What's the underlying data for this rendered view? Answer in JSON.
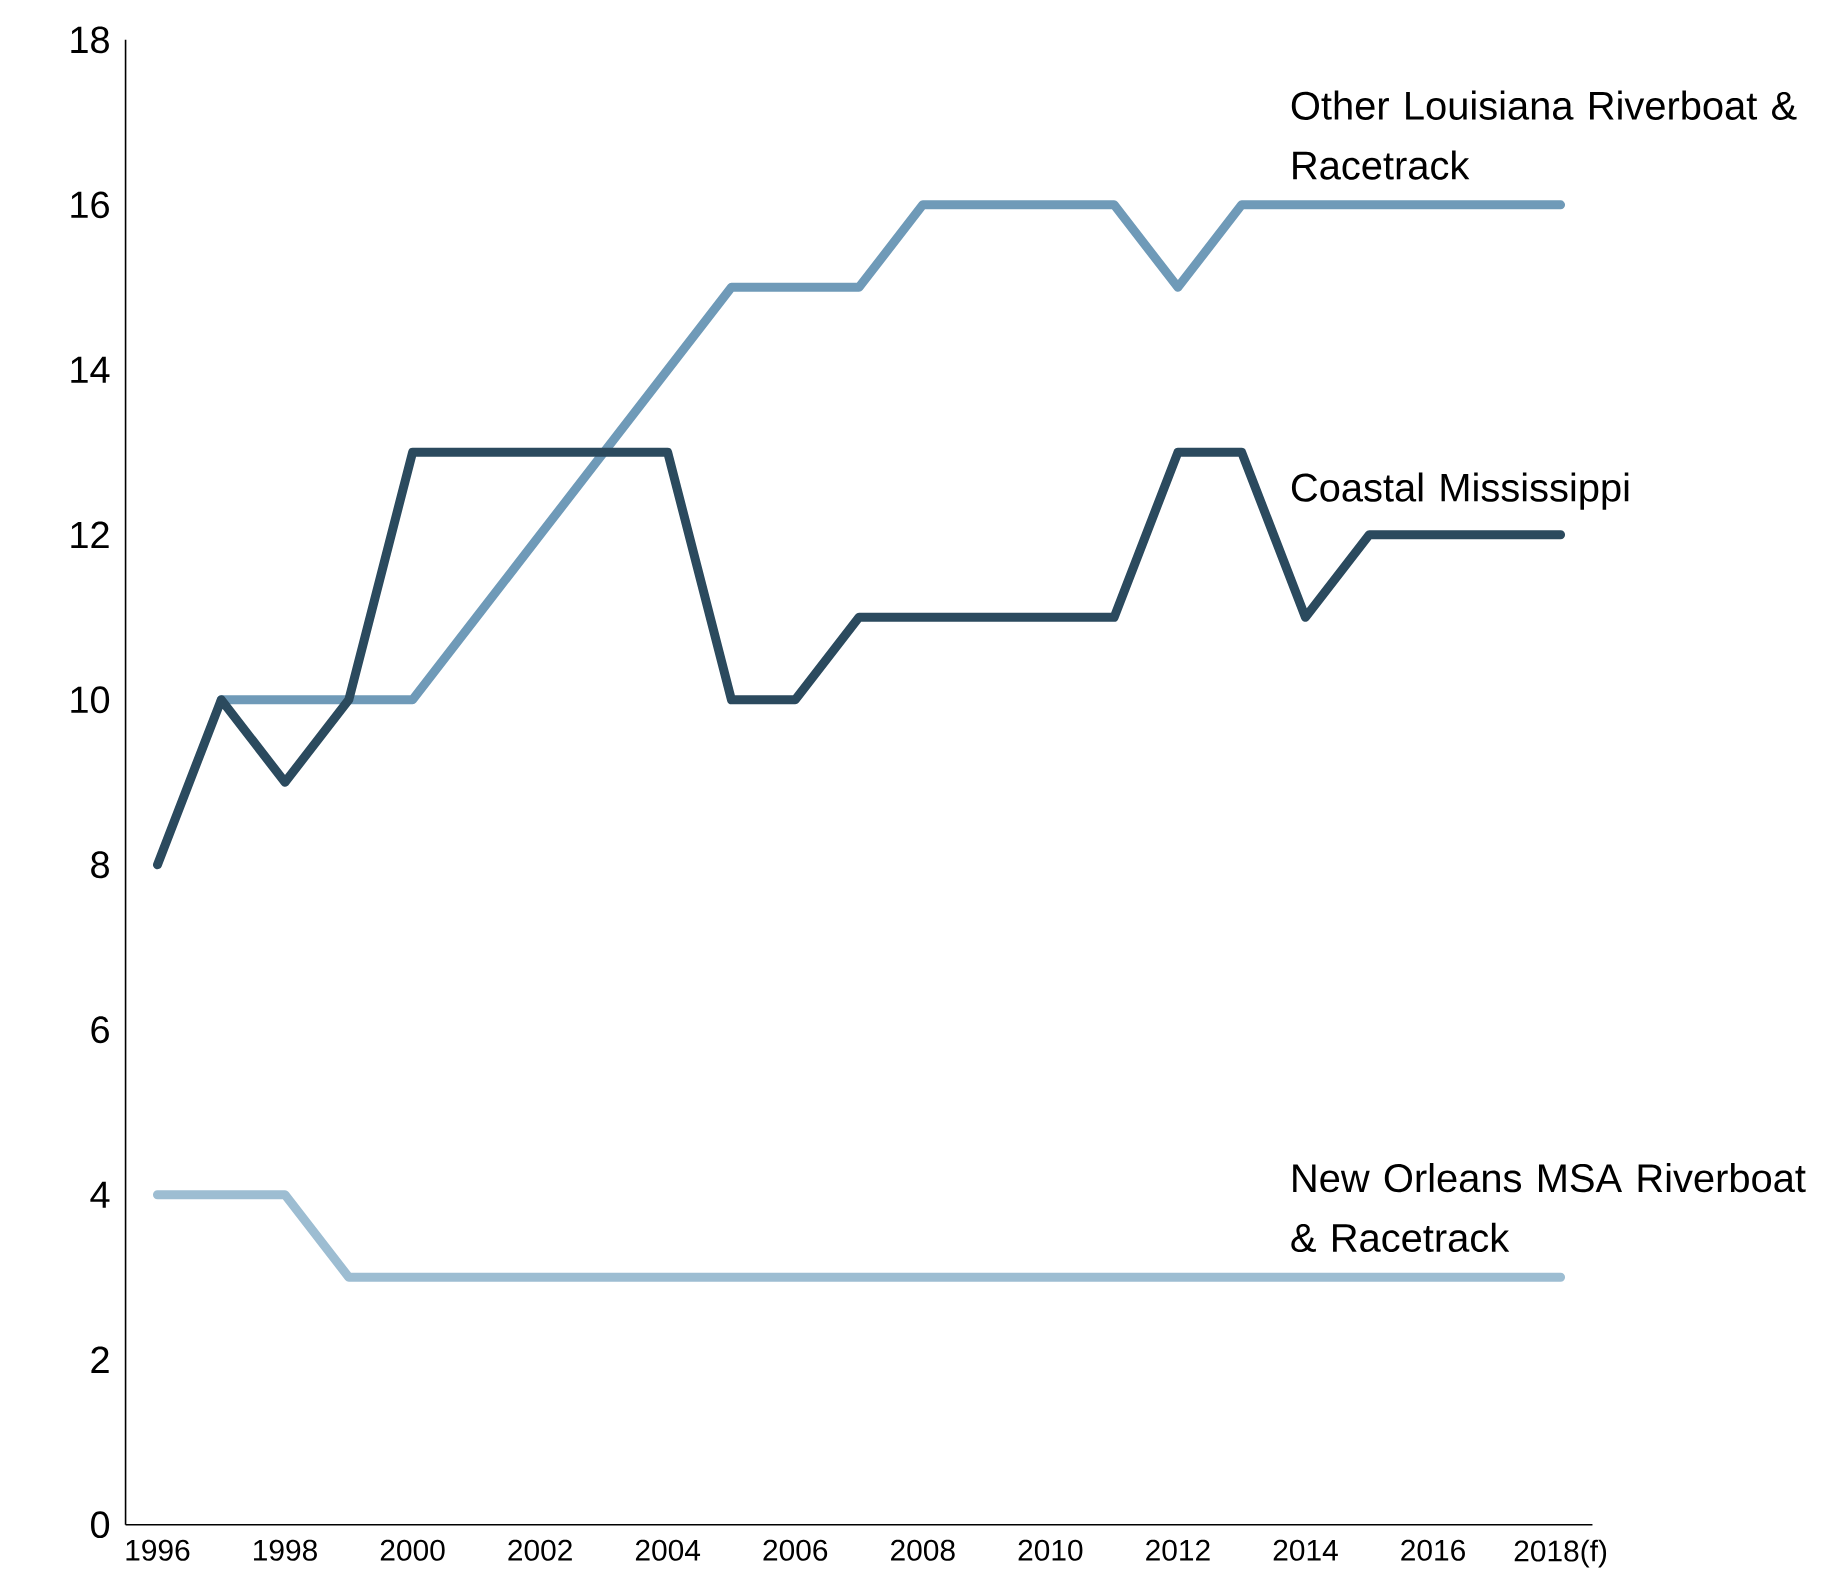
{
  "chart_data": {
    "type": "line",
    "x": [
      1996,
      1997,
      1998,
      1999,
      2000,
      2001,
      2002,
      2003,
      2004,
      2005,
      2006,
      2007,
      2008,
      2009,
      2010,
      2011,
      2012,
      2013,
      2014,
      2015,
      2016,
      2017,
      2018
    ],
    "series": [
      {
        "name": "Other Louisiana Riverboat & Racetrack",
        "color": "#6f9ab8",
        "values": [
          null,
          10,
          10,
          10,
          10,
          11,
          12,
          13,
          14,
          15,
          15,
          15,
          16,
          16,
          16,
          16,
          15,
          16,
          16,
          16,
          16,
          16,
          16
        ]
      },
      {
        "name": "Coastal Mississippi",
        "color": "#2b4a5e",
        "values": [
          8,
          10,
          9,
          10,
          13,
          13,
          13,
          13,
          13,
          10,
          10,
          11,
          11,
          11,
          11,
          11,
          13,
          13,
          11,
          12,
          12,
          12,
          12
        ]
      },
      {
        "name": "New Orleans MSA Riverboat & Racetrack",
        "color": "#9dbdd2",
        "values": [
          4,
          4,
          4,
          3,
          3,
          3,
          3,
          3,
          3,
          3,
          3,
          3,
          3,
          3,
          3,
          3,
          3,
          3,
          3,
          3,
          3,
          3,
          3
        ]
      }
    ],
    "xlim": [
      1995.5,
      2018.5
    ],
    "xticks": [
      1996,
      1998,
      2000,
      2002,
      2004,
      2006,
      2008,
      2010,
      2012,
      2014,
      2016,
      {
        "value": 2018,
        "label": "2018(f)"
      }
    ],
    "ylim": [
      0,
      18
    ],
    "yticks": [
      0,
      2,
      4,
      6,
      8,
      10,
      12,
      14,
      16,
      18
    ],
    "grid": false,
    "legend": false,
    "marker": "none",
    "line_style": "solid"
  }
}
